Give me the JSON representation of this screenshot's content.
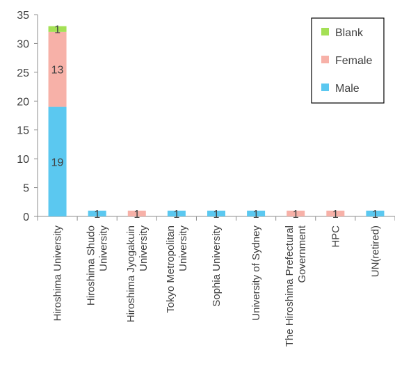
{
  "chart_data": {
    "type": "bar",
    "stacked": true,
    "title": "",
    "xlabel": "",
    "ylabel": "",
    "ylim": [
      0,
      35
    ],
    "yticks": [
      0,
      5,
      10,
      15,
      20,
      25,
      30,
      35
    ],
    "grid": false,
    "legend_position": "top-right",
    "categories": [
      [
        "Hiroshima University"
      ],
      [
        "Hiroshima Shudo",
        "University"
      ],
      [
        "Hiroshima Jyogakuin",
        "University"
      ],
      [
        "Tokyo Metropolitan",
        "University"
      ],
      [
        "Sophia University"
      ],
      [
        "University of Sydney"
      ],
      [
        "The Hiroshima Prefectural",
        "Government"
      ],
      [
        "HPC"
      ],
      [
        "UN(retired)"
      ]
    ],
    "series": [
      {
        "name": "Male",
        "color": "#5bc8f0",
        "values": [
          19,
          1,
          0,
          1,
          1,
          1,
          0,
          0,
          1
        ]
      },
      {
        "name": "Female",
        "color": "#f7b1a8",
        "values": [
          13,
          0,
          1,
          0,
          0,
          0,
          1,
          1,
          0
        ]
      },
      {
        "name": "Blank",
        "color": "#a4e055",
        "values": [
          1,
          0,
          0,
          0,
          0,
          0,
          0,
          0,
          0
        ]
      }
    ],
    "legend_order": [
      "Blank",
      "Female",
      "Male"
    ]
  }
}
